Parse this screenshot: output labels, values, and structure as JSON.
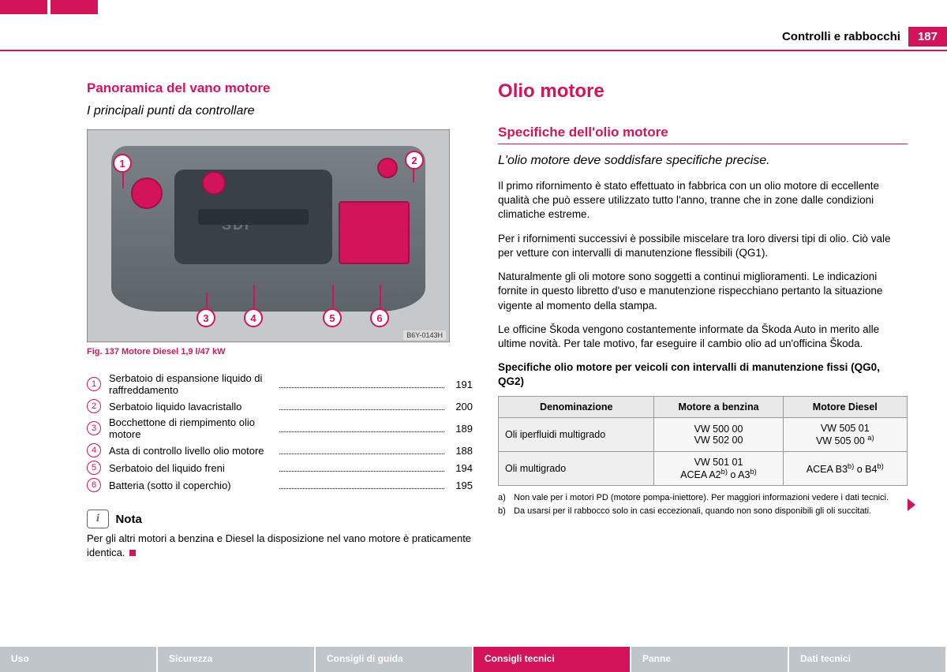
{
  "header": {
    "section": "Controlli e rabbocchi",
    "page": "187"
  },
  "left": {
    "heading": "Panoramica del vano motore",
    "subtitle": "I principali punti da controllare",
    "figure_code": "B6Y-0143H",
    "figure_caption": "Fig. 137   Motore Diesel 1,9 l/47 kW",
    "engine_label": "SDI",
    "refs": [
      {
        "n": "1",
        "label": "Serbatoio di espansione liquido di raffreddamento",
        "page": "191"
      },
      {
        "n": "2",
        "label": "Serbatoio liquido lavacristallo",
        "page": "200"
      },
      {
        "n": "3",
        "label": "Bocchettone di riempimento olio motore",
        "page": "189"
      },
      {
        "n": "4",
        "label": "Asta di controllo livello olio motore",
        "page": "188"
      },
      {
        "n": "5",
        "label": "Serbatoio del liquido freni",
        "page": "194"
      },
      {
        "n": "6",
        "label": "Batteria (sotto il coperchio)",
        "page": "195"
      }
    ],
    "note_label": "Nota",
    "note_text": "Per gli altri motori a benzina e Diesel la disposizione nel vano motore è praticamente identica."
  },
  "right": {
    "h1": "Olio motore",
    "h2": "Specifiche dell'olio motore",
    "subtitle": "L'olio motore deve soddisfare specifiche precise.",
    "p1": "Il primo rifornimento è stato effettuato in fabbrica con un olio motore di eccellente qualità che può essere utilizzato tutto l'anno, tranne che in zone dalle condizioni climatiche estreme.",
    "p2": "Per i rifornimenti successivi è possibile miscelare tra loro diversi tipi di olio. Ciò vale per vetture con intervalli di manutenzione flessibili (QG1).",
    "p3": "Naturalmente gli oli motore sono soggetti a continui miglioramenti. Le indicazioni fornite in questo libretto d'uso e manutenzione rispecchiano pertanto la situazione vigente al momento della stampa.",
    "p4": "Le officine Škoda vengono costantemente informate da Škoda Auto in merito alle ultime novità. Per tale motivo, far eseguire il cambio olio ad un'officina Škoda.",
    "table_title": "Specifiche olio motore per veicoli con intervalli di manutenzione fissi (QG0, QG2)",
    "table": {
      "headers": [
        "Denominazione",
        "Motore a benzina",
        "Motore Diesel"
      ],
      "rows": [
        {
          "name": "Oli iperfluidi multigrado",
          "petrol": "VW 500 00<br>VW 502 00",
          "diesel": "VW 505 01<br>VW 505 00 <sup>a)</sup>"
        },
        {
          "name": "Oli multigrado",
          "petrol": "VW 501 01<br>ACEA A2<sup>b)</sup> o A3<sup>b)</sup>",
          "diesel": "ACEA B3<sup>b)</sup> o B4<sup>b)</sup>"
        }
      ]
    },
    "footnotes": [
      {
        "mark": "a)",
        "text": "Non vale per i motori PD (motore pompa-iniettore). Per maggiori informazioni vedere i dati tecnici."
      },
      {
        "mark": "b)",
        "text": "Da usarsi per il rabbocco solo in casi eccezionali, quando non sono disponibili gli oli succitati."
      }
    ]
  },
  "nav": [
    {
      "label": "Uso",
      "active": false
    },
    {
      "label": "Sicurezza",
      "active": false
    },
    {
      "label": "Consigli di guida",
      "active": false
    },
    {
      "label": "Consigli tecnici",
      "active": true
    },
    {
      "label": "Panne",
      "active": false
    },
    {
      "label": "Dati tecnici",
      "active": false
    }
  ],
  "colors": {
    "brand": "#d4145a",
    "nav_inactive": "#c0c5c9"
  }
}
